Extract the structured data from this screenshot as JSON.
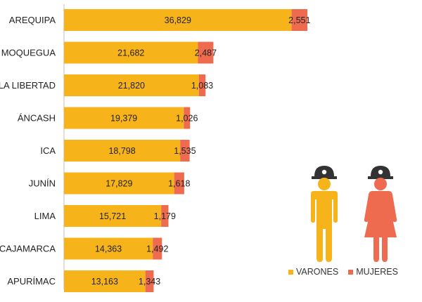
{
  "colors": {
    "varones": "#F7B41A",
    "mujeres": "#EE6B50",
    "helmet": "#333333",
    "axis": "#bdbdbd"
  },
  "legend": {
    "varones": "VARONES",
    "mujeres": "MUJERES"
  },
  "icons": [
    "man-miner-icon",
    "woman-miner-icon"
  ],
  "chart_data": {
    "type": "bar",
    "orientation": "horizontal",
    "stacked": true,
    "categories": [
      "AREQUIPA",
      "MOQUEGUA",
      "LA LIBERTAD",
      "ÁNCASH",
      "ICA",
      "JUNÍN",
      "LIMA",
      "CAJAMARCA",
      "APURÍMAC"
    ],
    "series": [
      {
        "name": "VARONES",
        "values": [
          36829,
          21682,
          21820,
          19379,
          18798,
          17829,
          15721,
          14363,
          13163
        ],
        "labels": [
          "36,829",
          "21,682",
          "21,820",
          "19,379",
          "18,798",
          "17,829",
          "15,721",
          "14,363",
          "13,163"
        ]
      },
      {
        "name": "MUJERES",
        "values": [
          2551,
          2487,
          1083,
          1026,
          1535,
          1618,
          1179,
          1492,
          1343
        ],
        "labels": [
          "2,551",
          "2,487",
          "1,083",
          "1,026",
          "1,535",
          "1,618",
          "1,179",
          "1,492",
          "1,343"
        ]
      }
    ],
    "xlim": [
      0,
      40000
    ],
    "legend_position": "bottom-right",
    "grid": false
  }
}
